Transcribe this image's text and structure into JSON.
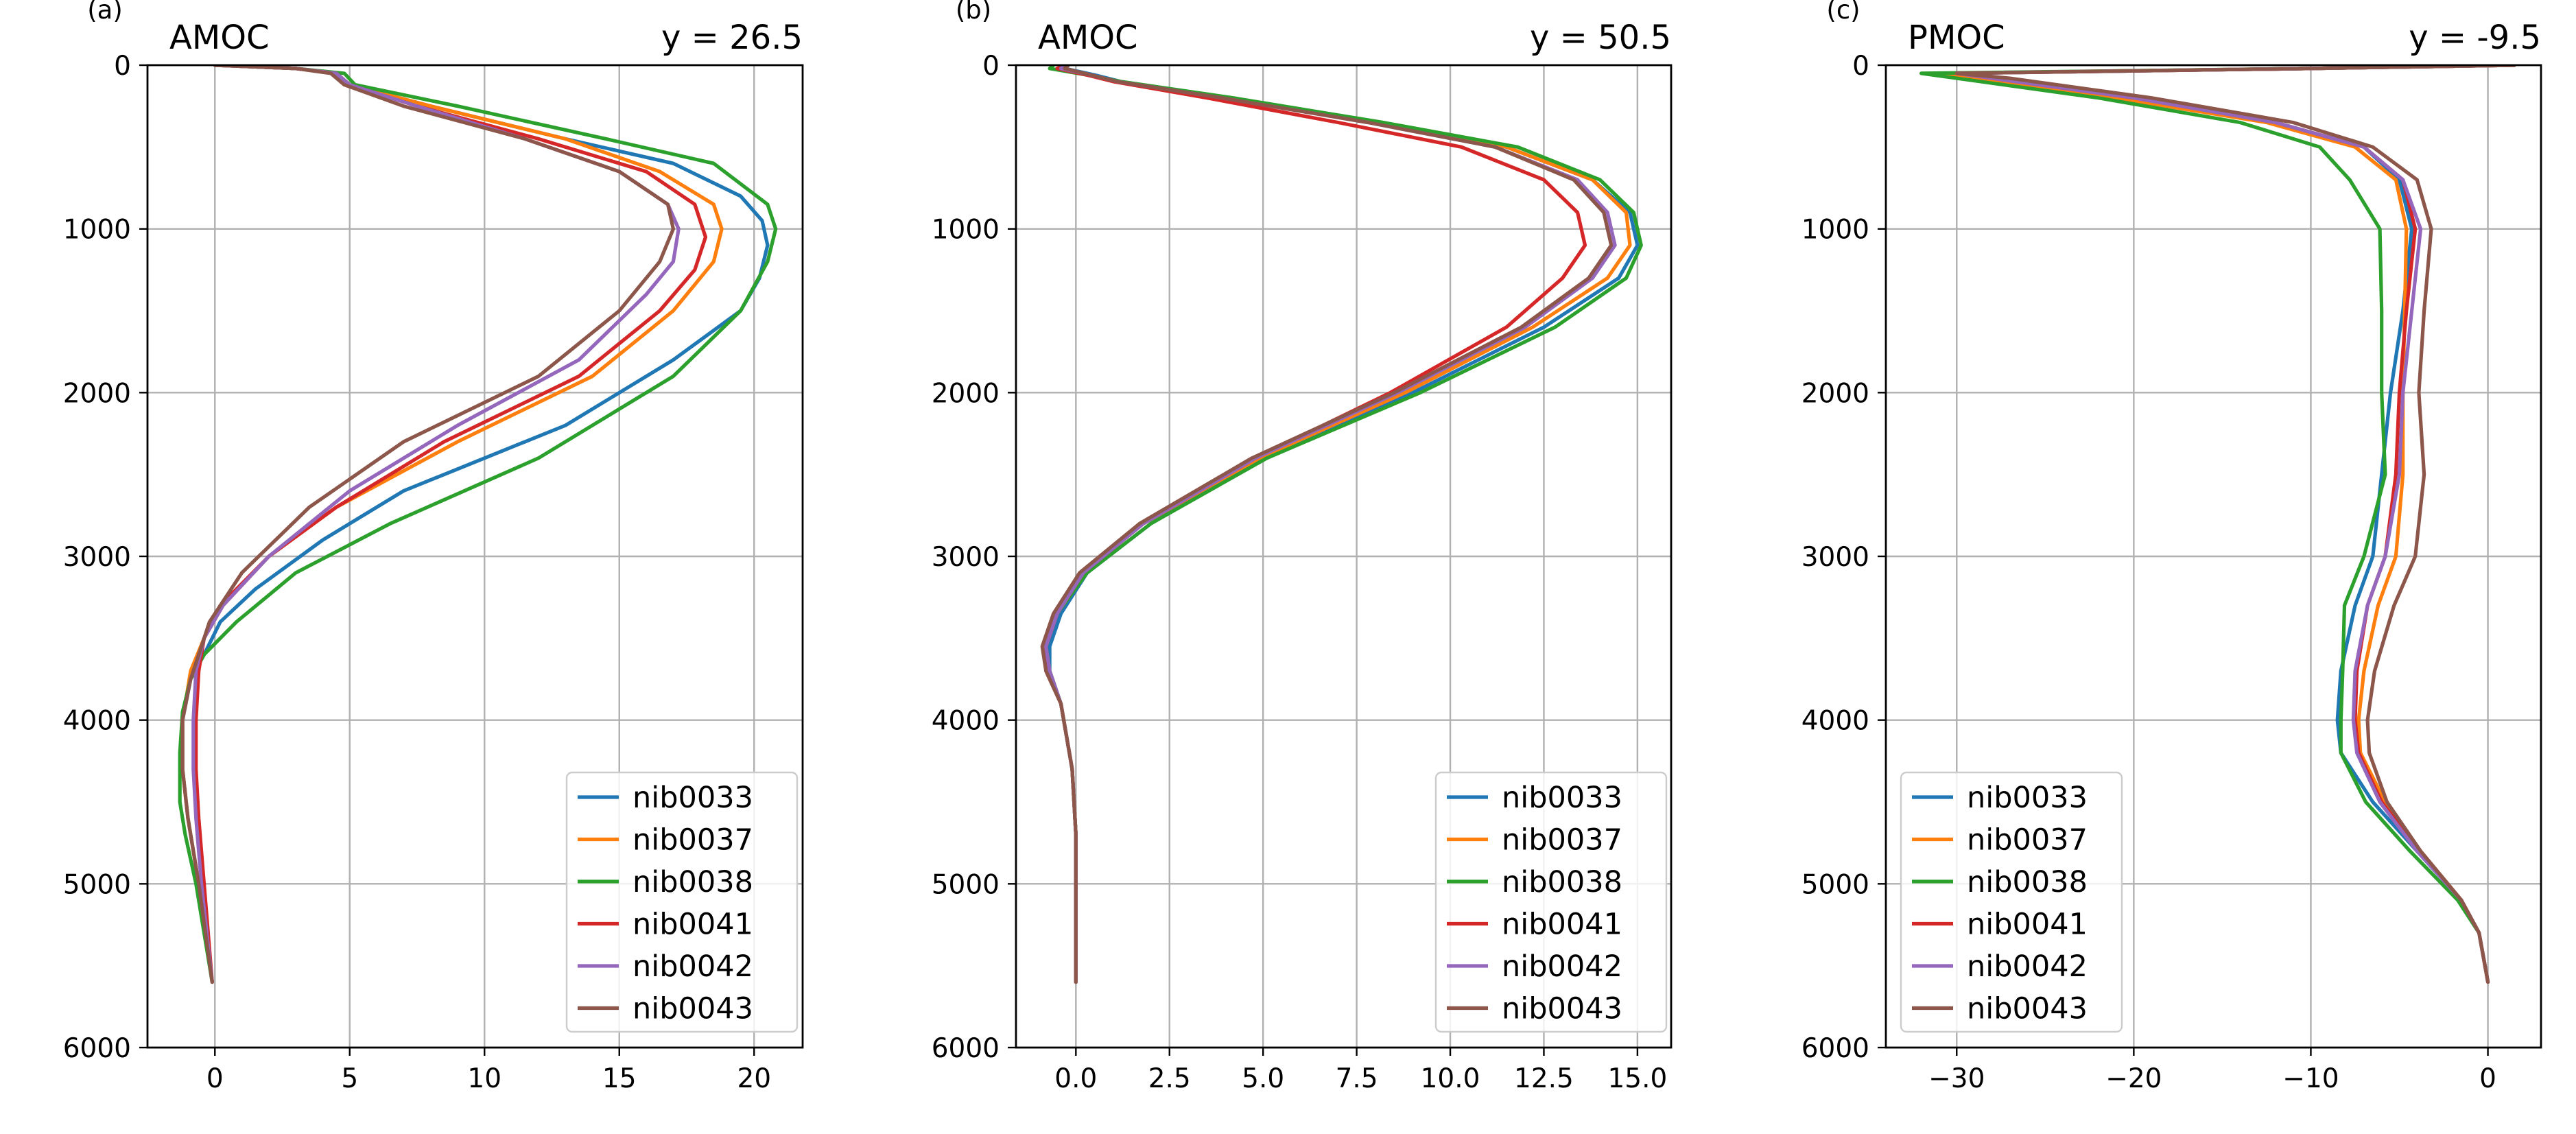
{
  "chart_data": [
    {
      "type": "line",
      "panel_label": "(a)",
      "title_left": "AMOC",
      "title_right": "y = 26.5",
      "xlim": [
        -2.5,
        21.8
      ],
      "ylim": [
        6000,
        0
      ],
      "xticks": [
        0,
        5,
        10,
        15,
        20
      ],
      "xtick_labels": [
        "0",
        "5",
        "10",
        "15",
        "20"
      ],
      "yticks": [
        0,
        1000,
        2000,
        3000,
        4000,
        5000,
        6000
      ],
      "ytick_labels": [
        "0",
        "1000",
        "2000",
        "3000",
        "4000",
        "5000",
        "6000"
      ],
      "grid": true,
      "legend_position": "lower-right",
      "series": [
        {
          "name": "nib0033",
          "color": "#1f77b4",
          "x": [
            0,
            3,
            4.5,
            5,
            8,
            13,
            17,
            19.5,
            20.3,
            20.5,
            20.2,
            19.5,
            17,
            13,
            7,
            4,
            1.5,
            0.2,
            -0.4,
            -0.9,
            -1.2,
            -1.2,
            -1.0,
            -0.6,
            -0.1
          ],
          "y": [
            0,
            20,
            50,
            120,
            250,
            450,
            600,
            800,
            950,
            1100,
            1300,
            1500,
            1800,
            2200,
            2600,
            2900,
            3200,
            3400,
            3600,
            3750,
            4000,
            4300,
            4600,
            5000,
            5600
          ]
        },
        {
          "name": "nib0037",
          "color": "#ff7f0e",
          "x": [
            0,
            3,
            4.5,
            5,
            8,
            13,
            16.5,
            18.5,
            18.8,
            18.5,
            17,
            14,
            9,
            4.5,
            2,
            0.3,
            -0.4,
            -0.9,
            -1.2,
            -1.2,
            -1.0,
            -0.6,
            -0.1
          ],
          "y": [
            0,
            20,
            50,
            120,
            250,
            450,
            650,
            850,
            1000,
            1200,
            1500,
            1900,
            2300,
            2700,
            3000,
            3300,
            3500,
            3700,
            4000,
            4300,
            4600,
            5000,
            5600
          ]
        },
        {
          "name": "nib0038",
          "color": "#2ca02c",
          "x": [
            0,
            3,
            4.8,
            5.2,
            9,
            14.5,
            18.5,
            20.5,
            20.8,
            20.5,
            19.5,
            17,
            12,
            6.5,
            3,
            0.8,
            -0.4,
            -0.9,
            -1.2,
            -1.3,
            -1.3,
            -1.1,
            -0.7,
            -0.1
          ],
          "y": [
            0,
            20,
            50,
            120,
            250,
            450,
            600,
            850,
            1000,
            1200,
            1500,
            1900,
            2400,
            2800,
            3100,
            3400,
            3600,
            3750,
            3950,
            4200,
            4500,
            4700,
            5000,
            5600
          ]
        },
        {
          "name": "nib0041",
          "color": "#d62728",
          "x": [
            0,
            3,
            4.5,
            5,
            7.5,
            12,
            16,
            17.8,
            18.2,
            17.8,
            16.5,
            13.5,
            8.5,
            4.5,
            2,
            0.2,
            -0.4,
            -0.6,
            -0.7,
            -0.7,
            -0.6,
            -0.4,
            -0.1
          ],
          "y": [
            0,
            20,
            50,
            120,
            250,
            450,
            650,
            850,
            1050,
            1250,
            1500,
            1900,
            2300,
            2700,
            3000,
            3300,
            3500,
            3700,
            4000,
            4300,
            4600,
            5000,
            5600
          ]
        },
        {
          "name": "nib0042",
          "color": "#9467bd",
          "x": [
            0,
            3,
            4.5,
            5,
            7.5,
            11.5,
            15,
            16.8,
            17.2,
            17.0,
            16.0,
            13.5,
            9,
            5,
            2,
            0.3,
            -0.4,
            -0.7,
            -0.8,
            -0.8,
            -0.7,
            -0.5,
            -0.1
          ],
          "y": [
            0,
            20,
            50,
            120,
            250,
            450,
            650,
            850,
            1000,
            1200,
            1400,
            1800,
            2200,
            2600,
            3000,
            3300,
            3500,
            3700,
            4000,
            4300,
            4600,
            5000,
            5600
          ]
        },
        {
          "name": "nib0043",
          "color": "#8c564b",
          "x": [
            0,
            3,
            4.3,
            4.8,
            7,
            11.5,
            15,
            16.8,
            17.0,
            16.5,
            15,
            12,
            7,
            3.5,
            1,
            -0.2,
            -0.6,
            -0.9,
            -1.2,
            -1.2,
            -1.0,
            -0.6,
            -0.1
          ],
          "y": [
            0,
            20,
            50,
            120,
            250,
            450,
            650,
            850,
            1000,
            1200,
            1500,
            1900,
            2300,
            2700,
            3100,
            3400,
            3600,
            3750,
            4000,
            4300,
            4600,
            5000,
            5600
          ]
        }
      ]
    },
    {
      "type": "line",
      "panel_label": "(b)",
      "title_left": "AMOC",
      "title_right": "y = 50.5",
      "xlim": [
        -1.6,
        15.9
      ],
      "ylim": [
        6000,
        0
      ],
      "xticks": [
        0,
        2.5,
        5,
        7.5,
        10,
        12.5,
        15
      ],
      "xtick_labels": [
        "0.0",
        "2.5",
        "5.0",
        "7.5",
        "10.0",
        "12.5",
        "15.0"
      ],
      "yticks": [
        0,
        1000,
        2000,
        3000,
        4000,
        5000,
        6000
      ],
      "ytick_labels": [
        "0",
        "1000",
        "2000",
        "3000",
        "4000",
        "5000",
        "6000"
      ],
      "grid": true,
      "legend_position": "lower-right",
      "series": [
        {
          "name": "nib0033",
          "color": "#1f77b4",
          "x": [
            -0.2,
            -0.3,
            0.5,
            1.2,
            4,
            8,
            11.5,
            13.8,
            14.8,
            15.0,
            14.5,
            12.5,
            9,
            5,
            2,
            0.3,
            -0.4,
            -0.7,
            -0.7,
            -0.4,
            -0.1,
            0,
            0,
            0
          ],
          "y": [
            0,
            20,
            60,
            100,
            200,
            350,
            500,
            700,
            900,
            1100,
            1300,
            1600,
            2000,
            2400,
            2800,
            3100,
            3350,
            3550,
            3700,
            3900,
            4300,
            4700,
            5000,
            5600
          ]
        },
        {
          "name": "nib0037",
          "color": "#ff7f0e",
          "x": [
            -0.3,
            -0.4,
            0.4,
            1.1,
            4,
            8,
            11.5,
            13.8,
            14.7,
            14.8,
            14.2,
            12.2,
            8.8,
            4.9,
            1.8,
            0.2,
            -0.5,
            -0.8,
            -0.7,
            -0.4,
            -0.1,
            0,
            0,
            0
          ],
          "y": [
            0,
            20,
            60,
            100,
            200,
            350,
            500,
            700,
            900,
            1100,
            1300,
            1600,
            2000,
            2400,
            2800,
            3100,
            3350,
            3550,
            3700,
            3900,
            4300,
            4700,
            5000,
            5600
          ]
        },
        {
          "name": "nib0038",
          "color": "#2ca02c",
          "x": [
            -0.6,
            -0.7,
            0.3,
            1.2,
            4.2,
            8.2,
            11.8,
            14.0,
            14.9,
            15.1,
            14.7,
            12.8,
            9.2,
            5.1,
            2,
            0.3,
            -0.5,
            -0.8,
            -0.7,
            -0.4,
            -0.1,
            0,
            0,
            0
          ],
          "y": [
            0,
            20,
            60,
            100,
            200,
            350,
            500,
            700,
            900,
            1100,
            1300,
            1600,
            2000,
            2400,
            2800,
            3100,
            3350,
            3550,
            3700,
            3900,
            4300,
            4700,
            5000,
            5600
          ]
        },
        {
          "name": "nib0041",
          "color": "#d62728",
          "x": [
            -0.3,
            -0.5,
            0.3,
            1.0,
            3.5,
            7,
            10.3,
            12.5,
            13.4,
            13.6,
            13.0,
            11.5,
            8.4,
            4.8,
            1.8,
            0.2,
            -0.5,
            -0.8,
            -0.8,
            -0.4,
            -0.1,
            0,
            0,
            0
          ],
          "y": [
            0,
            20,
            60,
            100,
            200,
            350,
            500,
            700,
            900,
            1100,
            1300,
            1600,
            2000,
            2400,
            2800,
            3100,
            3350,
            3550,
            3700,
            3900,
            4300,
            4700,
            5000,
            5600
          ]
        },
        {
          "name": "nib0042",
          "color": "#9467bd",
          "x": [
            -0.3,
            -0.4,
            0.4,
            1.1,
            3.9,
            7.8,
            11.2,
            13.4,
            14.2,
            14.4,
            13.8,
            12.0,
            8.6,
            4.8,
            1.8,
            0.2,
            -0.5,
            -0.8,
            -0.7,
            -0.4,
            -0.1,
            0,
            0,
            0
          ],
          "y": [
            0,
            20,
            60,
            100,
            200,
            350,
            500,
            700,
            900,
            1100,
            1300,
            1600,
            2000,
            2400,
            2800,
            3100,
            3350,
            3550,
            3700,
            3900,
            4300,
            4700,
            5000,
            5600
          ]
        },
        {
          "name": "nib0043",
          "color": "#8c564b",
          "x": [
            -0.2,
            -0.3,
            0.4,
            1.1,
            3.9,
            7.8,
            11.2,
            13.3,
            14.1,
            14.3,
            13.7,
            11.9,
            8.5,
            4.7,
            1.7,
            0.1,
            -0.6,
            -0.9,
            -0.8,
            -0.4,
            -0.1,
            0,
            0,
            0
          ],
          "y": [
            0,
            20,
            60,
            100,
            200,
            350,
            500,
            700,
            900,
            1100,
            1300,
            1600,
            2000,
            2400,
            2800,
            3100,
            3350,
            3550,
            3700,
            3900,
            4300,
            4700,
            5000,
            5600
          ]
        }
      ]
    },
    {
      "type": "line",
      "panel_label": "(c)",
      "title_left": "PMOC",
      "title_right": "y = -9.5",
      "xlim": [
        -34,
        3
      ],
      "ylim": [
        6000,
        0
      ],
      "xticks": [
        -30,
        -20,
        -10,
        0
      ],
      "xtick_labels": [
        "−30",
        "−20",
        "−10",
        "0"
      ],
      "yticks": [
        0,
        1000,
        2000,
        3000,
        4000,
        5000,
        6000
      ],
      "ytick_labels": [
        "0",
        "1000",
        "2000",
        "3000",
        "4000",
        "5000",
        "6000"
      ],
      "grid": true,
      "legend_position": "lower-left",
      "series": [
        {
          "name": "nib0033",
          "color": "#1f77b4",
          "x": [
            1.5,
            -10,
            -30,
            -28,
            -20,
            -12,
            -7,
            -5,
            -4.3,
            -4.8,
            -5.5,
            -6,
            -6.5,
            -7.5,
            -8.3,
            -8.5,
            -8.3,
            -6.5,
            -4,
            -1.5,
            -0.5,
            0
          ],
          "y": [
            0,
            20,
            50,
            80,
            200,
            350,
            500,
            700,
            1000,
            1500,
            2000,
            2500,
            3000,
            3300,
            3700,
            4000,
            4200,
            4500,
            4800,
            5100,
            5300,
            5600
          ]
        },
        {
          "name": "nib0037",
          "color": "#ff7f0e",
          "x": [
            1.5,
            -10,
            -31,
            -29,
            -21,
            -12.5,
            -7.5,
            -5.2,
            -4.6,
            -4.7,
            -4.8,
            -4.8,
            -5.2,
            -6.2,
            -7,
            -7.3,
            -7.2,
            -5.8,
            -3.8,
            -1.5,
            -0.5,
            0
          ],
          "y": [
            0,
            20,
            50,
            80,
            200,
            350,
            500,
            700,
            1000,
            1500,
            2000,
            2500,
            3000,
            3300,
            3700,
            4000,
            4200,
            4500,
            4800,
            5100,
            5300,
            5600
          ]
        },
        {
          "name": "nib0038",
          "color": "#2ca02c",
          "x": [
            1.5,
            -10,
            -32,
            -30,
            -22,
            -14,
            -9.5,
            -7.8,
            -6.1,
            -6.0,
            -6.0,
            -5.8,
            -7,
            -8.1,
            -8.2,
            -8.3,
            -8.3,
            -6.9,
            -4.4,
            -1.7,
            -0.5,
            0
          ],
          "y": [
            0,
            20,
            50,
            80,
            200,
            350,
            500,
            700,
            1000,
            1500,
            2000,
            2500,
            3000,
            3300,
            3700,
            4000,
            4200,
            4500,
            4800,
            5100,
            5300,
            5600
          ]
        },
        {
          "name": "nib0041",
          "color": "#d62728",
          "x": [
            1.5,
            -10,
            -30,
            -28,
            -20,
            -12,
            -7,
            -4.8,
            -4.1,
            -4.6,
            -5.0,
            -5.2,
            -5.8,
            -6.8,
            -7.4,
            -7.5,
            -7.3,
            -6,
            -3.9,
            -1.5,
            -0.5,
            0
          ],
          "y": [
            0,
            20,
            50,
            80,
            200,
            350,
            500,
            700,
            1000,
            1500,
            2000,
            2500,
            3000,
            3300,
            3700,
            4000,
            4200,
            4500,
            4800,
            5100,
            5300,
            5600
          ]
        },
        {
          "name": "nib0042",
          "color": "#9467bd",
          "x": [
            1.5,
            -10,
            -30,
            -28,
            -20,
            -12,
            -7,
            -4.8,
            -3.8,
            -4.3,
            -4.8,
            -5.0,
            -5.8,
            -6.8,
            -7.5,
            -7.6,
            -7.4,
            -6.1,
            -4,
            -1.5,
            -0.5,
            0
          ],
          "y": [
            0,
            20,
            50,
            80,
            200,
            350,
            500,
            700,
            1000,
            1500,
            2000,
            2500,
            3000,
            3300,
            3700,
            4000,
            4200,
            4500,
            4800,
            5100,
            5300,
            5600
          ]
        },
        {
          "name": "nib0043",
          "color": "#8c564b",
          "x": [
            1.5,
            -10,
            -30,
            -27,
            -19,
            -11,
            -6.5,
            -4,
            -3.2,
            -3.6,
            -3.9,
            -3.6,
            -4.1,
            -5.3,
            -6.4,
            -6.8,
            -6.7,
            -5.7,
            -3.8,
            -1.5,
            -0.5,
            0
          ],
          "y": [
            0,
            20,
            50,
            80,
            200,
            350,
            500,
            700,
            1000,
            1500,
            2000,
            2500,
            3000,
            3300,
            3700,
            4000,
            4200,
            4500,
            4800,
            5100,
            5300,
            5600
          ]
        }
      ]
    }
  ]
}
